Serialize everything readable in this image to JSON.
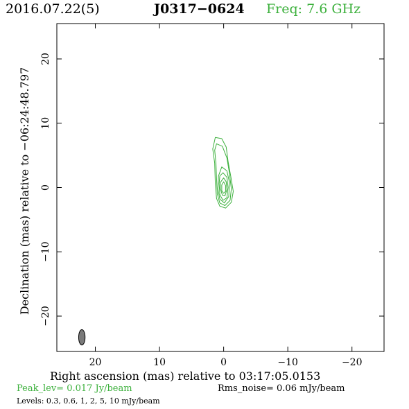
{
  "header": {
    "date": "2016.07.22(5)",
    "source": "J0317−0624",
    "freq": "Freq: 7.6 GHz"
  },
  "footer": {
    "peak": "Peak_lev=  0.017 Jy/beam",
    "rms": "Rms_noise= 0.06 mJy/beam",
    "levels": "Levels: 0.3, 0.6,   1,   2,   5,  10 mJy/beam"
  },
  "chart_data": {
    "type": "contour",
    "xlabel": "Right ascension (mas) relative to 03:17:05.0153",
    "ylabel": "Declination (mas) relative to −06:24:48.797",
    "xlim": [
      26,
      -25
    ],
    "ylim": [
      -25.5,
      25.5
    ],
    "xticks": [
      20,
      10,
      0,
      -10,
      -20
    ],
    "yticks": [
      20,
      10,
      0,
      -10,
      -20
    ],
    "xtick_labels": [
      "20",
      "10",
      "0",
      "−10",
      "−20"
    ],
    "ytick_labels": [
      "20",
      "10",
      "0",
      "−10",
      "−20"
    ],
    "contour_color": "#3cb03c",
    "contour_levels_mJy": [
      0.3,
      0.6,
      1,
      2,
      5,
      10
    ],
    "peak_position": [
      0,
      0
    ],
    "contours": [
      [
        [
          1.3,
          7.8
        ],
        [
          0.3,
          7.6
        ],
        [
          -0.4,
          6.3
        ],
        [
          -0.7,
          4.0
        ],
        [
          -1.1,
          1.8
        ],
        [
          -1.5,
          -0.6
        ],
        [
          -1.2,
          -2.3
        ],
        [
          -0.3,
          -3.2
        ],
        [
          0.6,
          -2.9
        ],
        [
          1.1,
          -1.7
        ],
        [
          1.3,
          0.6
        ],
        [
          1.4,
          3.8
        ],
        [
          1.7,
          6.0
        ]
      ],
      [
        [
          1.1,
          6.8
        ],
        [
          0.2,
          6.4
        ],
        [
          -0.5,
          4.6
        ],
        [
          -0.9,
          2.2
        ],
        [
          -1.2,
          -0.2
        ],
        [
          -1.0,
          -2.0
        ],
        [
          -0.2,
          -2.8
        ],
        [
          0.6,
          -2.4
        ],
        [
          1.0,
          -1.0
        ],
        [
          1.1,
          1.4
        ],
        [
          1.2,
          3.8
        ],
        [
          1.4,
          5.8
        ]
      ],
      [
        [
          0.3,
          3.2
        ],
        [
          -0.5,
          2.6
        ],
        [
          -0.9,
          0.8
        ],
        [
          -0.8,
          -1.4
        ],
        [
          -0.1,
          -2.4
        ],
        [
          0.6,
          -1.8
        ],
        [
          0.9,
          -0.2
        ],
        [
          0.8,
          1.8
        ]
      ],
      [
        [
          0.1,
          2.3
        ],
        [
          -0.5,
          1.6
        ],
        [
          -0.7,
          0.0
        ],
        [
          -0.5,
          -1.6
        ],
        [
          0.1,
          -2.0
        ],
        [
          0.6,
          -1.1
        ],
        [
          0.7,
          0.6
        ],
        [
          0.6,
          1.8
        ]
      ],
      [
        [
          0.0,
          1.5
        ],
        [
          -0.4,
          0.9
        ],
        [
          -0.5,
          -0.3
        ],
        [
          -0.2,
          -1.3
        ],
        [
          0.2,
          -1.2
        ],
        [
          0.5,
          -0.2
        ],
        [
          0.5,
          0.8
        ]
      ],
      [
        [
          0.0,
          0.9
        ],
        [
          -0.3,
          0.3
        ],
        [
          -0.3,
          -0.6
        ],
        [
          0.0,
          -0.9
        ],
        [
          0.3,
          -0.5
        ],
        [
          0.3,
          0.4
        ]
      ]
    ],
    "beam": {
      "x": 22.1,
      "y": -23.3,
      "major": 2.4,
      "minor": 1.0,
      "pa_deg": 0,
      "fill": "#7a7a7a"
    }
  }
}
